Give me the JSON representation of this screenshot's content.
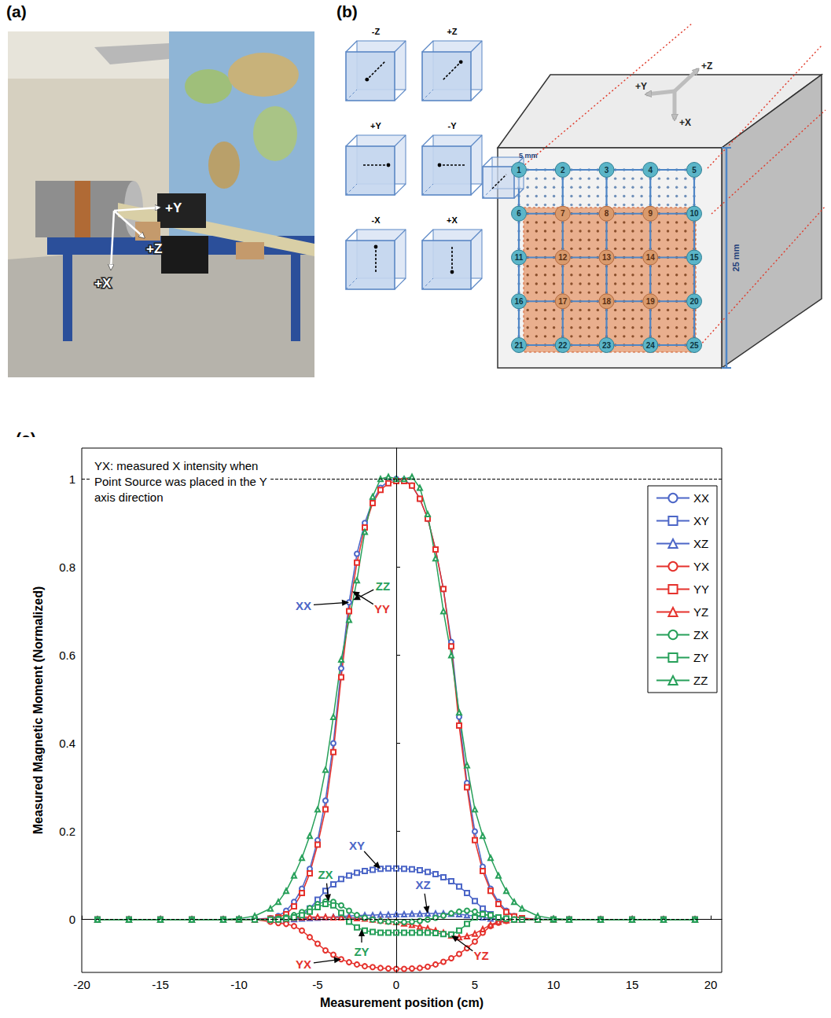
{
  "panels": {
    "a": {
      "letter": "(a)",
      "axes": [
        "+Y",
        "+X",
        "+Z"
      ]
    },
    "b": {
      "letter": "(b)",
      "cube_labels": [
        "-Z",
        "+Z",
        "+Y",
        "-Y",
        "-X",
        "+X"
      ],
      "axes": [
        "+Y",
        "+Z",
        "+X"
      ],
      "node_labels": [
        1,
        2,
        3,
        4,
        5,
        6,
        7,
        8,
        9,
        10,
        11,
        12,
        13,
        14,
        15,
        16,
        17,
        18,
        19,
        20,
        21,
        22,
        23,
        24,
        25
      ],
      "spacing_label": "5 mm",
      "size_label": "25 mm"
    },
    "c": {
      "letter": "(c)"
    }
  },
  "chart_data": {
    "type": "line",
    "xlabel": "Measurement position (cm)",
    "ylabel": "Measured Magnetic Moment (Normalized)",
    "annotation_text": "YX: measured X intensity when Point Source was placed in the Y axis direction",
    "xlim": [
      -20,
      20.7
    ],
    "xticks": [
      -20,
      -15,
      -10,
      -5,
      0,
      5,
      10,
      15,
      20
    ],
    "ylim": [
      -0.12,
      1.07
    ],
    "yticks": [
      0,
      0.2,
      0.4,
      0.6,
      0.8,
      1
    ],
    "grid": false,
    "legend": "upper right",
    "reference_lines": {
      "x": [
        0
      ],
      "y": [
        1,
        0
      ]
    },
    "x": [
      -19,
      -17,
      -15,
      -13,
      -11,
      -10,
      -9,
      -8,
      -7.5,
      -7,
      -6.5,
      -6,
      -5.5,
      -5,
      -4.5,
      -4,
      -3.5,
      -3,
      -2.5,
      -2,
      -1.5,
      -1,
      -0.5,
      0,
      0.5,
      1,
      1.5,
      2,
      2.5,
      3,
      3.5,
      4,
      4.5,
      5,
      5.5,
      6,
      6.5,
      7,
      7.5,
      8,
      9,
      10,
      11,
      13,
      15,
      17,
      19
    ],
    "series": [
      {
        "name": "XX",
        "color": "#4c66c7",
        "marker": "circle",
        "values": [
          0,
          0,
          0,
          0,
          0,
          0,
          0.001,
          0.003,
          0.008,
          0.02,
          0.04,
          0.07,
          0.115,
          0.18,
          0.27,
          0.4,
          0.57,
          0.72,
          0.83,
          0.9,
          0.95,
          0.98,
          0.995,
          1.0,
          0.998,
          0.985,
          0.955,
          0.91,
          0.84,
          0.75,
          0.63,
          0.46,
          0.31,
          0.2,
          0.12,
          0.07,
          0.04,
          0.02,
          0.008,
          0.003,
          0.001,
          0,
          0,
          0,
          0,
          0,
          0
        ]
      },
      {
        "name": "XY",
        "color": "#4c66c7",
        "marker": "square",
        "values": [
          0,
          0,
          0,
          0,
          0,
          0,
          0,
          0,
          0,
          0,
          0.002,
          0.01,
          0.025,
          0.045,
          0.065,
          0.08,
          0.092,
          0.1,
          0.106,
          0.11,
          0.113,
          0.115,
          0.116,
          0.116,
          0.115,
          0.114,
          0.112,
          0.108,
          0.103,
          0.096,
          0.087,
          0.075,
          0.06,
          0.042,
          0.025,
          0.012,
          0.004,
          0,
          0,
          0,
          0,
          0,
          0,
          0,
          0,
          0,
          0
        ]
      },
      {
        "name": "XZ",
        "color": "#4c66c7",
        "marker": "triangle",
        "values": [
          0,
          0,
          0,
          0,
          0,
          0,
          0,
          0,
          0,
          0,
          0.001,
          0.002,
          0.003,
          0.004,
          0.005,
          0.006,
          0.007,
          0.008,
          0.009,
          0.01,
          0.01,
          0.011,
          0.011,
          0.012,
          0.012,
          0.013,
          0.013,
          0.014,
          0.014,
          0.014,
          0.013,
          0.012,
          0.01,
          0.008,
          0.005,
          0.002,
          0.001,
          0,
          0,
          0,
          0,
          0,
          0,
          0,
          0,
          0,
          0
        ]
      },
      {
        "name": "YX",
        "color": "#e5322d",
        "marker": "circle",
        "values": [
          0,
          0,
          0,
          0,
          0,
          0,
          0,
          -0.005,
          -0.008,
          -0.01,
          -0.015,
          -0.025,
          -0.04,
          -0.055,
          -0.07,
          -0.08,
          -0.09,
          -0.097,
          -0.102,
          -0.106,
          -0.108,
          -0.11,
          -0.111,
          -0.112,
          -0.112,
          -0.111,
          -0.11,
          -0.107,
          -0.102,
          -0.096,
          -0.088,
          -0.078,
          -0.065,
          -0.05,
          -0.03,
          -0.015,
          -0.007,
          -0.003,
          0,
          0,
          0,
          0,
          0,
          0,
          0,
          0,
          0
        ]
      },
      {
        "name": "YY",
        "color": "#e5322d",
        "marker": "square",
        "values": [
          0,
          0,
          0,
          0,
          0,
          0,
          0,
          0.002,
          0.005,
          0.012,
          0.03,
          0.06,
          0.105,
          0.17,
          0.25,
          0.38,
          0.55,
          0.7,
          0.81,
          0.89,
          0.945,
          0.975,
          0.99,
          0.995,
          0.995,
          0.985,
          0.955,
          0.91,
          0.84,
          0.75,
          0.62,
          0.44,
          0.3,
          0.18,
          0.11,
          0.065,
          0.035,
          0.017,
          0.007,
          0.003,
          0,
          0,
          0,
          0,
          0,
          0,
          0
        ]
      },
      {
        "name": "YZ",
        "color": "#e5322d",
        "marker": "triangle",
        "values": [
          0,
          0,
          0,
          0,
          0,
          0,
          0,
          0,
          0,
          0.002,
          0.004,
          0.005,
          0.006,
          0.006,
          0.006,
          0.005,
          0.005,
          0.004,
          0.003,
          0.002,
          0,
          -0.002,
          -0.004,
          -0.006,
          -0.009,
          -0.012,
          -0.016,
          -0.02,
          -0.025,
          -0.03,
          -0.036,
          -0.04,
          -0.038,
          -0.032,
          -0.022,
          -0.012,
          -0.005,
          -0.002,
          0,
          0,
          0,
          0,
          0,
          0,
          0,
          0,
          0
        ]
      },
      {
        "name": "ZX",
        "color": "#27a05a",
        "marker": "circle",
        "values": [
          0,
          0,
          0,
          0,
          0,
          0,
          0,
          0,
          0.002,
          0.005,
          0.01,
          0.017,
          0.026,
          0.035,
          0.041,
          0.04,
          0.032,
          0.02,
          0.01,
          0.004,
          0,
          -0.003,
          -0.005,
          -0.006,
          -0.006,
          -0.005,
          -0.003,
          0,
          0.004,
          0.009,
          0.014,
          0.018,
          0.02,
          0.018,
          0.013,
          0.008,
          0.004,
          0.002,
          0,
          0,
          0,
          0,
          0,
          0,
          0,
          0,
          0
        ]
      },
      {
        "name": "ZY",
        "color": "#27a05a",
        "marker": "square",
        "values": [
          0,
          0,
          0,
          0,
          0,
          0,
          0,
          0,
          0,
          0.002,
          0.005,
          0.01,
          0.018,
          0.028,
          0.035,
          0.032,
          0.015,
          -0.005,
          -0.018,
          -0.025,
          -0.028,
          -0.03,
          -0.03,
          -0.03,
          -0.03,
          -0.03,
          -0.03,
          -0.03,
          -0.031,
          -0.033,
          -0.034,
          -0.025,
          -0.01,
          0.005,
          0.012,
          0.01,
          0.005,
          0.002,
          0,
          0,
          0,
          0,
          0,
          0,
          0,
          0,
          0
        ]
      },
      {
        "name": "ZZ",
        "color": "#27a05a",
        "marker": "triangle",
        "values": [
          0,
          0,
          0,
          0,
          0,
          0.002,
          0.008,
          0.025,
          0.04,
          0.065,
          0.1,
          0.14,
          0.19,
          0.25,
          0.34,
          0.46,
          0.59,
          0.68,
          0.77,
          0.88,
          0.96,
          1.0,
          1.005,
          1.0,
          1.0,
          1.005,
          0.98,
          0.92,
          0.82,
          0.7,
          0.6,
          0.47,
          0.35,
          0.25,
          0.19,
          0.14,
          0.1,
          0.065,
          0.04,
          0.025,
          0.008,
          0.002,
          0,
          0,
          0,
          0,
          0
        ]
      }
    ],
    "annotations": [
      {
        "text": "XX",
        "x": -3,
        "y": 0.72
      },
      {
        "text": "ZZ",
        "x": -2.75,
        "y": 0.725
      },
      {
        "text": "YY",
        "x": -2.8,
        "y": 0.745
      },
      {
        "text": "XY",
        "x": -1,
        "y": 0.115
      },
      {
        "text": "ZX",
        "x": -4.3,
        "y": 0.041
      },
      {
        "text": "XZ",
        "x": 2,
        "y": 0.014
      },
      {
        "text": "ZY",
        "x": -2.2,
        "y": -0.022
      },
      {
        "text": "YX",
        "x": -3.5,
        "y": -0.09
      },
      {
        "text": "YZ",
        "x": 3.5,
        "y": -0.036
      }
    ]
  }
}
